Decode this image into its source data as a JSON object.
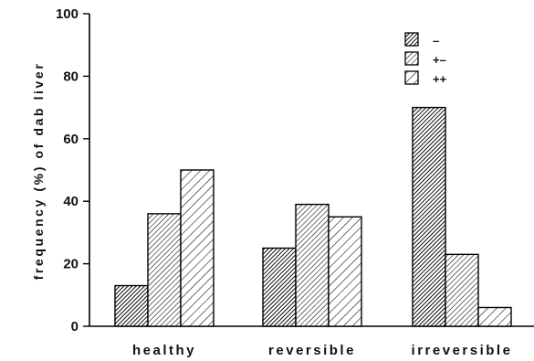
{
  "chart_data": {
    "type": "bar",
    "categories": [
      "healthy",
      "reversible",
      "irreversible"
    ],
    "series": [
      {
        "name": "–",
        "values": [
          13,
          25,
          70
        ],
        "pattern": "dense"
      },
      {
        "name": "+–",
        "values": [
          36,
          39,
          23
        ],
        "pattern": "medium"
      },
      {
        "name": "++",
        "values": [
          50,
          35,
          6
        ],
        "pattern": "sparse"
      }
    ],
    "title": "",
    "xlabel": "",
    "ylabel": "frequency (%) of dab liver",
    "ylim": [
      0,
      100
    ],
    "yticks": [
      "0",
      "20",
      "40",
      "60",
      "80",
      "100"
    ],
    "grid": false,
    "legend_position": "top-right"
  }
}
